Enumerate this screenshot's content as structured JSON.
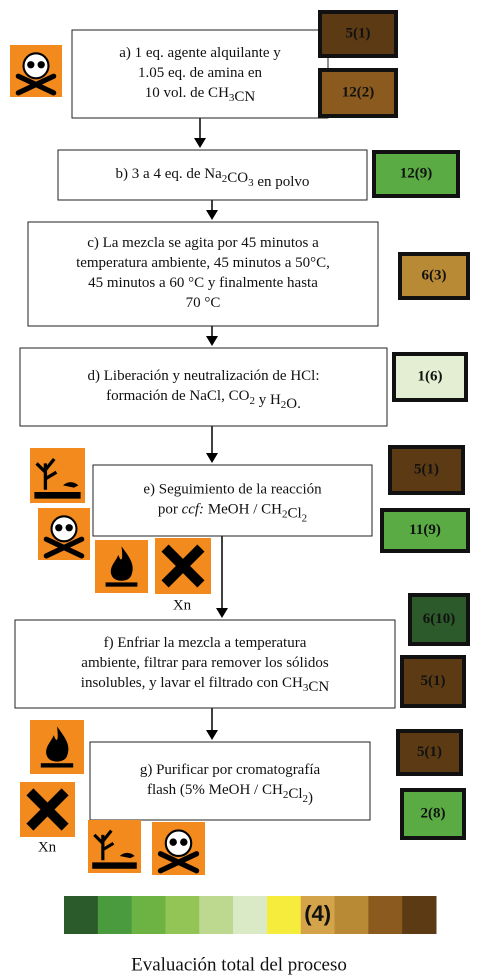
{
  "steps": [
    {
      "lines": [
        [
          "a) 1 eq. agente alquilante y"
        ],
        [
          "1.05 eq. de amina en"
        ],
        [
          "10 vol. de CH",
          {
            "sub": "3"
          },
          "CN"
        ]
      ],
      "badges": [
        {
          "label": "5(1)",
          "color": "#5c3b14"
        },
        {
          "label": "12(2)",
          "color": "#8a5a1e"
        }
      ]
    },
    {
      "lines": [
        [
          "b) 3 a 4 eq. de Na",
          {
            "sub": "2"
          },
          "CO",
          {
            "sub": "3"
          },
          "  en polvo"
        ]
      ],
      "badges": [
        {
          "label": "12(9)",
          "color": "#5aab44"
        }
      ]
    },
    {
      "lines": [
        [
          "c) La mezcla se agita por 45 minutos a"
        ],
        [
          "temperatura ambiente, 45 minutos a 50°C,"
        ],
        [
          "45 minutos a 60 °C y finalmente hasta"
        ],
        [
          "70 °C"
        ]
      ],
      "badges": [
        {
          "label": "6(3)",
          "color": "#b98a36"
        }
      ]
    },
    {
      "lines": [
        [
          "d) Liberación y neutralización de HCl:"
        ],
        [
          "formación de NaCl, CO",
          {
            "sub": "2"
          },
          " y H",
          {
            "sub": "2"
          },
          "O."
        ]
      ],
      "badges": [
        {
          "label": "1(6)",
          "color": "#e4eed3"
        }
      ]
    },
    {
      "lines": [
        [
          "e) Seguimiento de la reacción"
        ],
        [
          "por ",
          {
            "i": "ccf:"
          },
          " MeOH  / CH",
          {
            "sub": "2"
          },
          "Cl",
          {
            "sub": "2"
          }
        ]
      ],
      "badges": [
        {
          "label": "5(1)",
          "color": "#5c3b14"
        },
        {
          "label": "11(9)",
          "color": "#5aab44"
        }
      ]
    },
    {
      "lines": [
        [
          "f) Enfriar la mezcla a temperatura"
        ],
        [
          "ambiente, filtrar para remover los sólidos"
        ],
        [
          "insolubles, y lavar el filtrado con CH",
          {
            "sub": "3"
          },
          "CN"
        ]
      ],
      "badges": [
        {
          "label": "6(10)",
          "color": "#2d5a2a"
        },
        {
          "label": "5(1)",
          "color": "#5c3b14"
        }
      ]
    },
    {
      "lines": [
        [
          "g) Purificar por cromatografía"
        ],
        [
          "flash (5% MeOH / CH",
          {
            "sub": "2"
          },
          "Cl",
          {
            "sub": "2"
          },
          ")"
        ]
      ],
      "badges": [
        {
          "label": "5(1)",
          "color": "#5c3b14"
        },
        {
          "label": "2(8)",
          "color": "#5aab44"
        }
      ]
    }
  ],
  "hazard_labels": [
    "Xn",
    "Xn"
  ],
  "scale_label": "(4)",
  "caption": "Evaluación total del proceso"
}
